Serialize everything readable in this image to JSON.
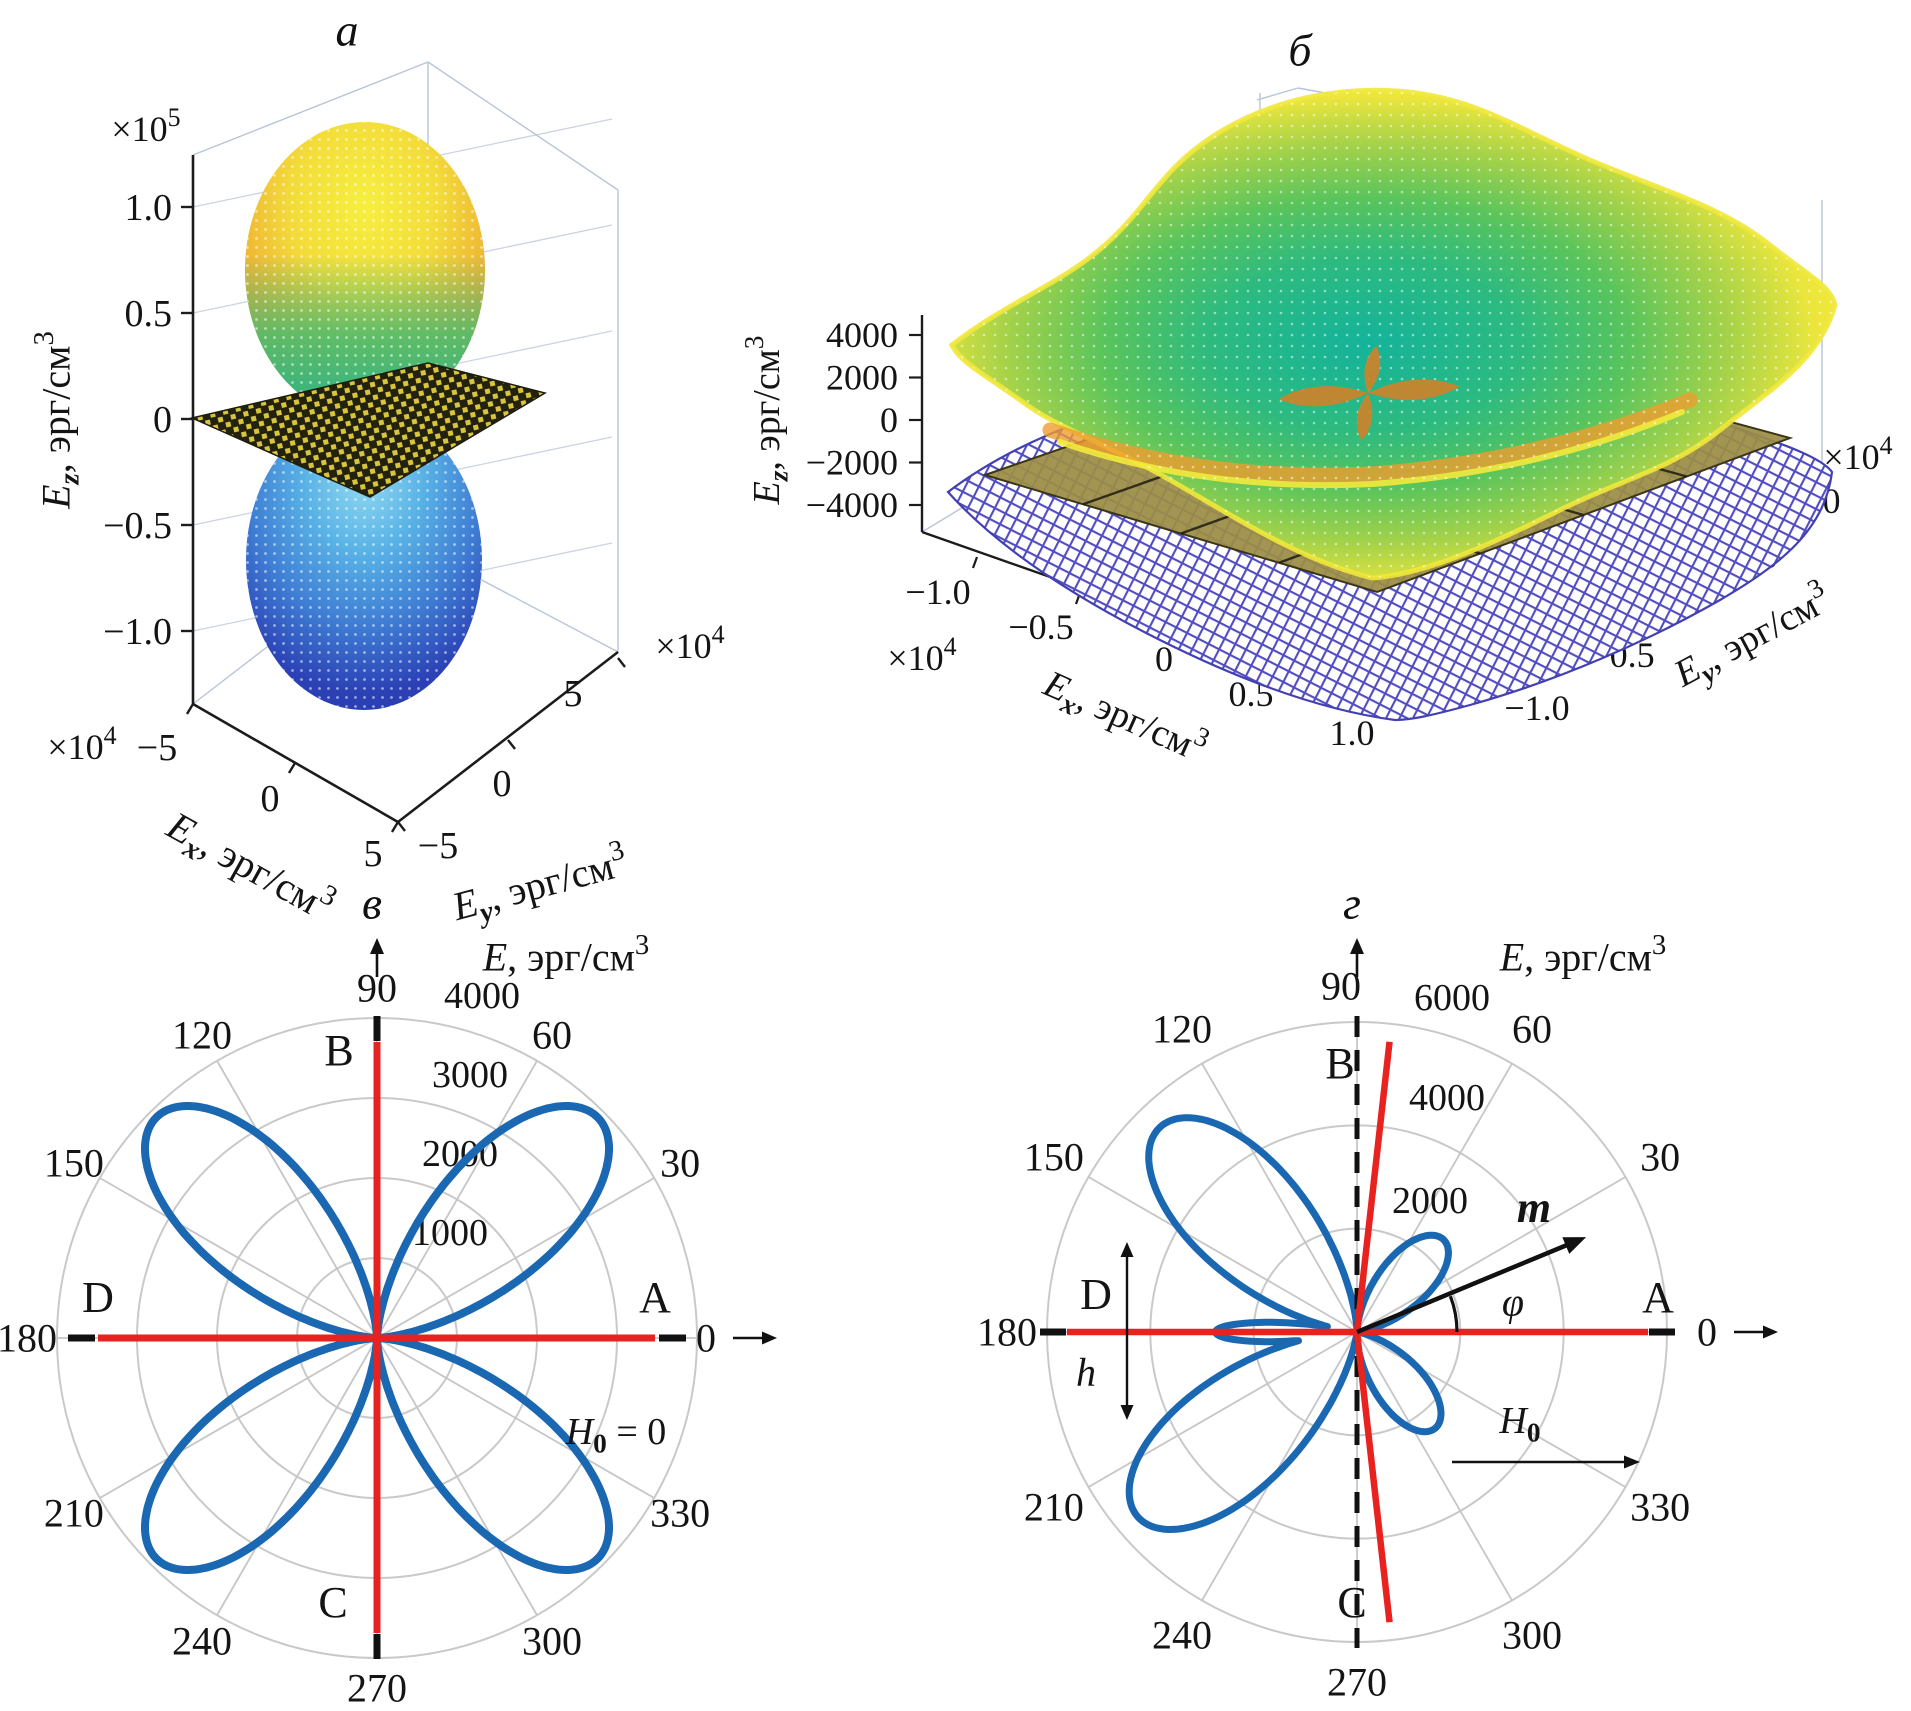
{
  "figure": {
    "panel_tags": [
      "а",
      "б",
      "в",
      "г"
    ]
  },
  "chart_data": [
    {
      "id": "a",
      "type": "surface3d",
      "panel_tag": "а",
      "z_axis": {
        "label": "Ez, эрг/см3",
        "label_parts": [
          [
            "E",
            "i"
          ],
          [
            "z",
            "i sub"
          ],
          [
            ", эрг/см",
            ""
          ],
          [
            "3",
            "sup"
          ]
        ],
        "scale": "×105",
        "scale_parts": [
          [
            "×10",
            ""
          ],
          [
            "5",
            "sup"
          ]
        ],
        "ticks": [
          "1.0",
          "0.5",
          "0",
          "−0.5",
          "−1.0"
        ]
      },
      "x_axis": {
        "label": "Ex, эрг/см3",
        "label_parts": [
          [
            "E",
            "i"
          ],
          [
            "x",
            "i sub"
          ],
          [
            ", эрг/см",
            ""
          ],
          [
            "3",
            "sup"
          ]
        ],
        "scale": "×104",
        "scale_parts": [
          [
            "×10",
            ""
          ],
          [
            "4",
            "sup"
          ]
        ],
        "ticks": [
          "−5",
          "0",
          "5"
        ]
      },
      "y_axis": {
        "label": "Ey, эрг/см3",
        "label_parts": [
          [
            "E",
            "i"
          ],
          [
            "y",
            "i sub"
          ],
          [
            ", эрг/см",
            ""
          ],
          [
            "3",
            "sup"
          ]
        ],
        "scale": "×104",
        "scale_parts": [
          [
            "×10",
            ""
          ],
          [
            "4",
            "sup"
          ]
        ],
        "ticks": [
          "−5",
          "0",
          "5"
        ]
      },
      "surfaces": {
        "upper_lobe_colors": [
          "#f6ef3e",
          "#efc937",
          "#ec9f31",
          "#3cbd72",
          "#1fb48d"
        ],
        "lower_lobe_colors": [
          "#93dbf2",
          "#58b2e6",
          "#3f7ed4",
          "#2b41b5"
        ],
        "plane_colors": [
          "#23220f",
          "#d9c53b"
        ]
      }
    },
    {
      "id": "b",
      "type": "surface3d",
      "panel_tag": "б",
      "z_axis": {
        "label": "Ez, эрг/см3",
        "label_parts": [
          [
            "E",
            "i"
          ],
          [
            "z",
            "i sub"
          ],
          [
            ", эрг/см",
            ""
          ],
          [
            "3",
            "sup"
          ]
        ],
        "ticks": [
          "4000",
          "2000",
          "0",
          "−2000",
          "−4000"
        ]
      },
      "x_axis": {
        "label": "Ex, эрг/см3",
        "label_parts": [
          [
            "E",
            "i"
          ],
          [
            "x",
            "i sub"
          ],
          [
            ", эрг/см",
            ""
          ],
          [
            "3",
            "sup"
          ]
        ],
        "scale": "×104",
        "scale_parts": [
          [
            "×10",
            ""
          ],
          [
            "4",
            "sup"
          ]
        ],
        "ticks": [
          "−1.0",
          "−0.5",
          "0",
          "0.5",
          "1.0"
        ]
      },
      "y_axis": {
        "label": "Ey, эрг/см3",
        "label_parts": [
          [
            "E",
            "i"
          ],
          [
            "y",
            "i sub"
          ],
          [
            ", эрг/см",
            ""
          ],
          [
            "3",
            "sup"
          ]
        ],
        "scale": "×104",
        "scale_parts": [
          [
            "×10",
            ""
          ],
          [
            "4",
            "sup"
          ]
        ],
        "ticks": [
          "−1.0",
          "−0.5",
          "0",
          "0.5",
          "1.0"
        ]
      },
      "surfaces": {
        "upper_sheet_colors": [
          "#14b39b",
          "#2cba80",
          "#59c45c",
          "#a5d249",
          "#ece63c",
          "#f6ef3e"
        ],
        "upper_rim_band": "#ef9c2e",
        "lower_sheet_color": "#4943bd",
        "plane_color": "#9b8d45",
        "rosette_color": "#c8842d",
        "rosette_petals": 4
      }
    },
    {
      "id": "v",
      "type": "polar",
      "panel_tag": "в",
      "axis_title": "E, эрг/см3",
      "axis_title_parts": [
        [
          "E",
          "i"
        ],
        [
          ", эрг/см",
          ""
        ],
        [
          "3",
          "sup"
        ]
      ],
      "r_max": 4000,
      "r_ticks": [
        1000,
        2000,
        3000,
        4000
      ],
      "angle_ticks_deg": [
        0,
        30,
        60,
        90,
        120,
        150,
        180,
        210,
        240,
        270,
        300,
        330
      ],
      "corner_letters": [
        {
          "text": "A",
          "deg": 0
        },
        {
          "text": "B",
          "deg": 90
        },
        {
          "text": "D",
          "deg": 180
        },
        {
          "text": "C",
          "deg": 270
        }
      ],
      "easy_axes_deg": [
        0,
        90,
        180,
        270
      ],
      "annotation": {
        "text": "H0 = 0",
        "parts": [
          [
            "H",
            "i"
          ],
          [
            "0",
            "sub"
          ],
          [
            " = 0",
            ""
          ]
        ]
      },
      "curve": {
        "color": "#1a67b2",
        "combine": "max",
        "petals": [
          {
            "center_deg": 45,
            "amp": 3900,
            "width_n": 2
          },
          {
            "center_deg": 135,
            "amp": 3900,
            "width_n": 2
          },
          {
            "center_deg": 225,
            "amp": 3900,
            "width_n": 2
          },
          {
            "center_deg": 315,
            "amp": 3900,
            "width_n": 2
          }
        ]
      }
    },
    {
      "id": "g",
      "type": "polar",
      "panel_tag": "г",
      "axis_title": "E, эрг/см3",
      "axis_title_parts": [
        [
          "E",
          "i"
        ],
        [
          ", эрг/см",
          ""
        ],
        [
          "3",
          "sup"
        ]
      ],
      "r_max": 6000,
      "r_ticks": [
        2000,
        4000,
        6000
      ],
      "angle_ticks_deg": [
        0,
        30,
        60,
        90,
        120,
        150,
        180,
        210,
        240,
        270,
        300,
        330
      ],
      "corner_letters": [
        {
          "text": "A",
          "deg": 0
        },
        {
          "text": "B",
          "deg": 90
        },
        {
          "text": "D",
          "deg": 180
        },
        {
          "text": "C",
          "deg": 270
        }
      ],
      "easy_axis_horizontal_deg": [
        0,
        180
      ],
      "tilted_easy_rays_deg": [
        83.6,
        276.4
      ],
      "hard_axis_dashed_deg": [
        90,
        270
      ],
      "annotations": {
        "m_arrow": {
          "label": "m",
          "parts": [
            [
              "m",
              "i b"
            ]
          ],
          "deg": 22.5,
          "r": 4800
        },
        "phi": {
          "label": "φ",
          "parts": [
            [
              "φ",
              "i"
            ]
          ],
          "arc_from_deg": 0,
          "arc_to_deg": 21
        },
        "field": {
          "label": "H0",
          "parts": [
            [
              "H",
              "i"
            ],
            [
              "0",
              "sub"
            ]
          ]
        },
        "modulation": {
          "label": "h",
          "parts": [
            [
              "h",
              "i"
            ]
          ]
        }
      },
      "curve": {
        "color": "#1a67b2",
        "combine": "max",
        "petals": [
          {
            "center_deg": 47,
            "amp": 2450,
            "width_n": 2
          },
          {
            "center_deg": 134,
            "amp": 5500,
            "width_n": 2
          },
          {
            "center_deg": 220,
            "amp": 5550,
            "width_n": 2
          },
          {
            "center_deg": 309,
            "amp": 2400,
            "width_n": 2
          },
          {
            "center_deg": 180,
            "amp": 2740,
            "width_n": 6
          }
        ]
      }
    }
  ]
}
